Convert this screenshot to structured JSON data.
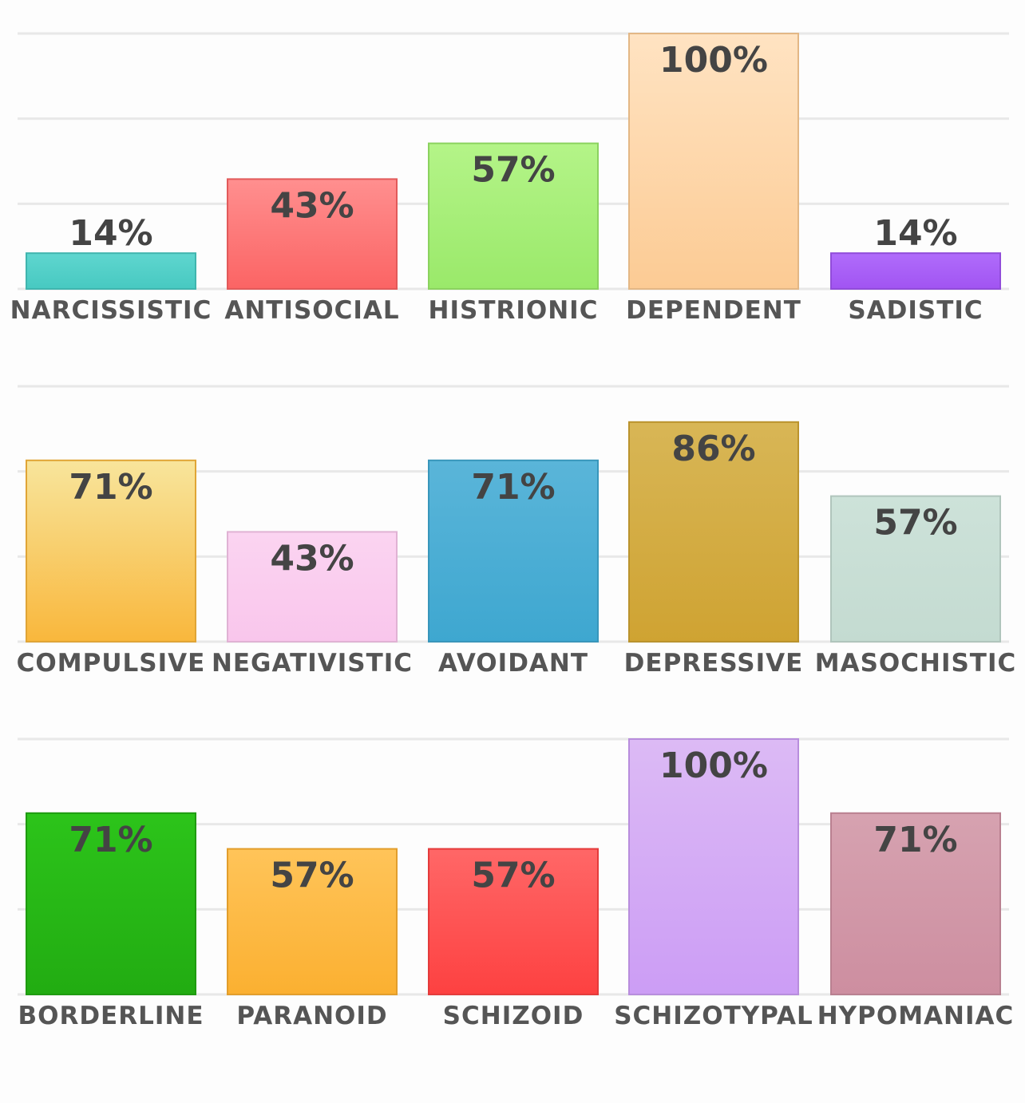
{
  "chart_data": [
    {
      "type": "bar",
      "categories": [
        "NARCISSISTIC",
        "ANTISOCIAL",
        "HISTRIONIC",
        "DEPENDENT",
        "SADISTIC"
      ],
      "values": [
        14,
        43,
        57,
        100,
        14
      ],
      "value_labels": [
        "14%",
        "43%",
        "57%",
        "100%",
        "14%"
      ],
      "ylim": [
        0,
        100
      ],
      "grid": true,
      "colors": [
        [
          "#5fd6cf",
          "#47c9c1"
        ],
        [
          "#ff8f8f",
          "#fb6464"
        ],
        [
          "#b4f488",
          "#9ae96a"
        ],
        [
          "#ffe3c2",
          "#fccb94"
        ],
        [
          "#b06cfb",
          "#a154f2"
        ]
      ]
    },
    {
      "type": "bar",
      "categories": [
        "COMPULSIVE",
        "NEGATIVISTIC",
        "AVOIDANT",
        "DEPRESSIVE",
        "MASOCHISTIC"
      ],
      "values": [
        71,
        43,
        71,
        86,
        57
      ],
      "value_labels": [
        "71%",
        "43%",
        "71%",
        "86%",
        "57%"
      ],
      "ylim": [
        0,
        100
      ],
      "grid": true,
      "colors": [
        [
          "#f8e59c",
          "#f9b73c"
        ],
        [
          "#fbd4f1",
          "#f9c6ec"
        ],
        [
          "#5ab5d9",
          "#3ea7d0"
        ],
        [
          "#d8b656",
          "#cfa332"
        ],
        [
          "#cde2d9",
          "#c4dbd1"
        ]
      ]
    },
    {
      "type": "bar",
      "categories": [
        "BORDERLINE",
        "PARANOID",
        "SCHIZOID",
        "SCHIZOTYPAL",
        "HYPOMANIAC"
      ],
      "values": [
        71,
        57,
        57,
        100,
        71
      ],
      "value_labels": [
        "71%",
        "57%",
        "57%",
        "100%",
        "71%"
      ],
      "ylim": [
        0,
        100
      ],
      "grid": true,
      "colors": [
        [
          "#2cc41a",
          "#22ac12"
        ],
        [
          "#ffc459",
          "#fbb031"
        ],
        [
          "#ff6767",
          "#fd4141"
        ],
        [
          "#dcbaf5",
          "#cc9df5"
        ],
        [
          "#d6a2b0",
          "#cd8ea0"
        ]
      ]
    }
  ]
}
